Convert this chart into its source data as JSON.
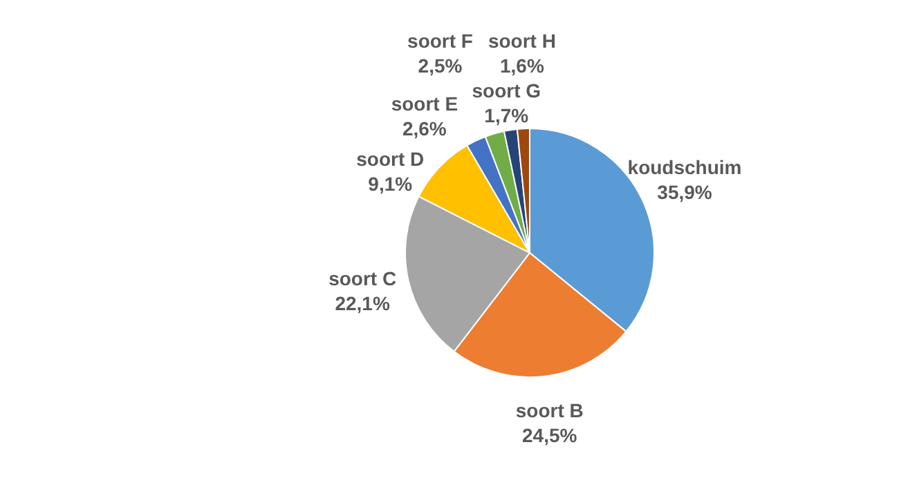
{
  "chart_data": {
    "type": "pie",
    "categories": [
      "koudschuim",
      "soort B",
      "soort C",
      "soort D",
      "soort E",
      "soort F",
      "soort G",
      "soort H"
    ],
    "values": [
      35.9,
      24.5,
      22.1,
      9.1,
      2.6,
      2.5,
      1.7,
      1.6
    ],
    "value_labels": [
      "35,9%",
      "24,5%",
      "22,1%",
      "9,1%",
      "2,6%",
      "2,5%",
      "1,7%",
      "1,6%"
    ],
    "colors": [
      "#5b9bd5",
      "#ed7d31",
      "#a5a5a5",
      "#ffc000",
      "#4472c4",
      "#70ad47",
      "#264478",
      "#9e480e"
    ]
  }
}
